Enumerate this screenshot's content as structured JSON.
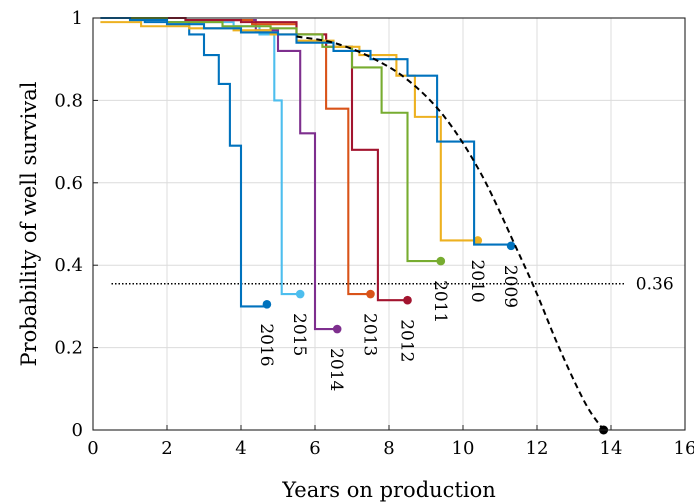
{
  "chart_data": {
    "type": "line",
    "title": "",
    "xlabel": "Years on production",
    "ylabel": "Probability of well survival",
    "xlim": [
      0,
      16
    ],
    "ylim": [
      0,
      1
    ],
    "xticks": [
      "0",
      "2",
      "4",
      "6",
      "8",
      "10",
      "12",
      "14",
      "16"
    ],
    "yticks": [
      "0",
      "0.2",
      "0.4",
      "0.6",
      "0.8",
      "1"
    ],
    "grid": true,
    "legend": "none (series labeled at curve ends)",
    "series": [
      {
        "name": "2009",
        "color": "#0072BD",
        "x": [
          0.2,
          1.0,
          2.0,
          3.0,
          4.0,
          5.0,
          5.5,
          6.5,
          7.5,
          8.5,
          9.3,
          10.3,
          11.3
        ],
        "y": [
          1.0,
          0.995,
          0.985,
          0.975,
          0.965,
          0.96,
          0.94,
          0.92,
          0.9,
          0.86,
          0.7,
          0.45,
          0.45
        ],
        "end": [
          11.3,
          0.447
        ]
      },
      {
        "name": "2010",
        "color": "#EDB120",
        "x": [
          0.2,
          1.3,
          2.6,
          3.8,
          4.8,
          5.5,
          6.5,
          7.2,
          8.2,
          8.7,
          9.4,
          10.4
        ],
        "y": [
          0.99,
          0.98,
          0.975,
          0.97,
          0.96,
          0.945,
          0.93,
          0.91,
          0.86,
          0.76,
          0.46,
          0.46
        ],
        "end": [
          10.4,
          0.46
        ]
      },
      {
        "name": "2011",
        "color": "#77AC30",
        "x": [
          0.3,
          2.0,
          3.5,
          4.8,
          5.5,
          6.2,
          7.0,
          7.8,
          8.5,
          9.4
        ],
        "y": [
          1.0,
          0.99,
          0.98,
          0.975,
          0.96,
          0.93,
          0.88,
          0.77,
          0.41,
          0.41
        ],
        "end": [
          9.4,
          0.41
        ]
      },
      {
        "name": "2012",
        "color": "#A2142F",
        "x": [
          0.4,
          2.5,
          4.0,
          5.5,
          6.3,
          7.0,
          7.7,
          8.5
        ],
        "y": [
          1.0,
          0.995,
          0.99,
          0.96,
          0.93,
          0.68,
          0.315,
          0.315
        ],
        "end": [
          8.5,
          0.315
        ]
      },
      {
        "name": "2013",
        "color": "#D95319",
        "x": [
          0.4,
          2.5,
          4.3,
          5.5,
          6.3,
          6.9,
          7.5
        ],
        "y": [
          1.0,
          0.995,
          0.985,
          0.96,
          0.78,
          0.33,
          0.33
        ],
        "end": [
          7.5,
          0.33
        ]
      },
      {
        "name": "2014",
        "color": "#7E2F8E",
        "x": [
          0.5,
          2.5,
          4.4,
          5.0,
          5.6,
          6.0,
          6.6
        ],
        "y": [
          1.0,
          0.995,
          0.97,
          0.92,
          0.72,
          0.245,
          0.245
        ],
        "end": [
          6.6,
          0.245
        ]
      },
      {
        "name": "2015",
        "color": "#4DBEEE",
        "x": [
          0.5,
          2.5,
          3.8,
          4.5,
          4.9,
          5.1,
          5.6
        ],
        "y": [
          1.0,
          0.99,
          0.98,
          0.96,
          0.8,
          0.33,
          0.33
        ],
        "end": [
          5.6,
          0.33
        ]
      },
      {
        "name": "2016",
        "color": "#0072BD",
        "x": [
          0.3,
          1.4,
          2.6,
          3.0,
          3.4,
          3.7,
          4.0,
          4.2,
          4.7
        ],
        "y": [
          1.0,
          0.99,
          0.96,
          0.91,
          0.84,
          0.69,
          0.3,
          0.3,
          0.3
        ],
        "end": [
          4.7,
          0.305
        ]
      }
    ],
    "reference_line": {
      "y": 0.355,
      "x": [
        0.5,
        14.4
      ],
      "label": "0.36"
    },
    "trend_curve": {
      "style": "dashed",
      "color": "#000000",
      "x": [
        5.5,
        6.5,
        7.5,
        8.5,
        9.5,
        10.5,
        11.5,
        12.0,
        12.5,
        13.0,
        13.4,
        13.8
      ],
      "y": [
        0.955,
        0.94,
        0.905,
        0.85,
        0.76,
        0.62,
        0.43,
        0.33,
        0.22,
        0.12,
        0.05,
        0.0
      ],
      "end": [
        13.8,
        0.0
      ]
    }
  }
}
